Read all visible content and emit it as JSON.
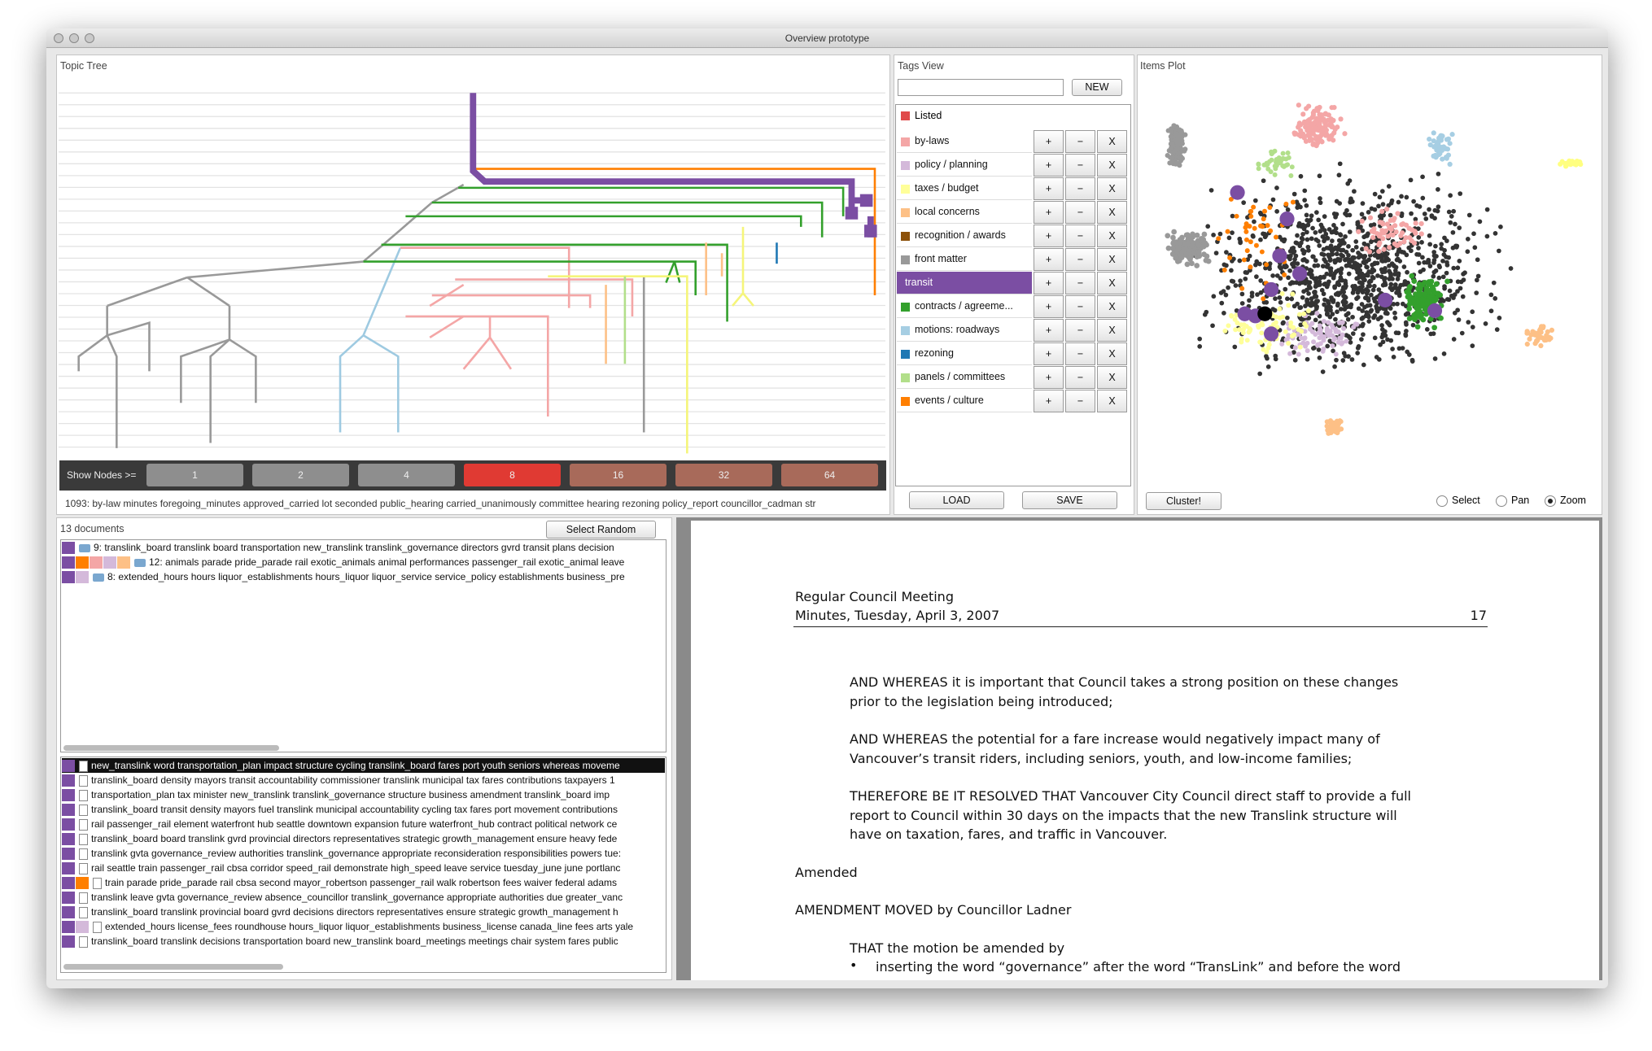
{
  "window": {
    "title": "Overview prototype"
  },
  "topic_tree": {
    "title": "Topic Tree",
    "show_nodes_label": "Show Nodes >=",
    "node_buttons": [
      {
        "label": "1",
        "color": "#8e8e8e"
      },
      {
        "label": "2",
        "color": "#8e8e8e"
      },
      {
        "label": "4",
        "color": "#8e8e8e"
      },
      {
        "label": "8",
        "color": "#e03a33"
      },
      {
        "label": "16",
        "color": "#a86a5a"
      },
      {
        "label": "32",
        "color": "#a86a5a"
      },
      {
        "label": "64",
        "color": "#a86a5a"
      }
    ],
    "status": "1093: by-law minutes foregoing_minutes approved_carried lot seconded public_hearing carried_unanimously committee hearing rezoning policy_report councillor_cadman str"
  },
  "tags_view": {
    "title": "Tags View",
    "new_button": "NEW",
    "listed": {
      "name": "Listed",
      "color": "#e04b4b"
    },
    "tags": [
      {
        "name": "by-laws",
        "color": "#f4a6a6"
      },
      {
        "name": "policy / planning",
        "color": "#d4b9da"
      },
      {
        "name": "taxes / budget",
        "color": "#ffff99"
      },
      {
        "name": "local concerns",
        "color": "#fdc086"
      },
      {
        "name": "recognition / awards",
        "color": "#8c510a"
      },
      {
        "name": "front matter",
        "color": "#999999"
      },
      {
        "name": "transit",
        "color": "#7b4ea3",
        "selected": true
      },
      {
        "name": "contracts / agreeme...",
        "color": "#33a02c"
      },
      {
        "name": "motions: roadways",
        "color": "#a6cee3"
      },
      {
        "name": "rezoning",
        "color": "#1f78b4"
      },
      {
        "name": "panels / committees",
        "color": "#b2df8a"
      },
      {
        "name": "events / culture",
        "color": "#ff7f00"
      }
    ],
    "row_buttons": [
      "+",
      "−",
      "X"
    ],
    "load_button": "LOAD",
    "save_button": "SAVE"
  },
  "items_plot": {
    "title": "Items Plot",
    "cluster_button": "Cluster!",
    "modes": [
      {
        "label": "Select",
        "checked": false
      },
      {
        "label": "Pan",
        "checked": false
      },
      {
        "label": "Zoom",
        "checked": true
      }
    ]
  },
  "documents": {
    "count_label": "13 documents",
    "select_random": "Select Random",
    "items": [
      {
        "colors": [
          "#7b4ea3"
        ],
        "text": "9: translink_board translink board transportation new_translink translink_governance directors gvrd transit plans decision"
      },
      {
        "colors": [
          "#7b4ea3",
          "#ff7f00",
          "#f4a6a6",
          "#d4b9da",
          "#fdc086"
        ],
        "text": "12: animals parade pride_parade rail exotic_animals animal performances passenger_rail exotic_animal leave"
      },
      {
        "colors": [
          "#7b4ea3",
          "#d4b9da"
        ],
        "text": "8: extended_hours hours liquor_establishments hours_liquor liquor_service service_policy establishments business_pre"
      }
    ],
    "snippets": [
      {
        "colors": [
          "#7b4ea3"
        ],
        "selected": true,
        "text": "new_translink word transportation_plan impact structure cycling translink_board fares port youth seniors whereas moveme"
      },
      {
        "colors": [
          "#7b4ea3"
        ],
        "text": "translink_board density mayors transit accountability commissioner translink municipal tax fares contributions taxpayers 1"
      },
      {
        "colors": [
          "#7b4ea3"
        ],
        "text": "transportation_plan tax minister new_translink translink_governance structure business amendment translink_board imp"
      },
      {
        "colors": [
          "#7b4ea3"
        ],
        "text": "translink_board transit density mayors fuel translink municipal accountability cycling tax fares port movement contributions"
      },
      {
        "colors": [
          "#7b4ea3"
        ],
        "text": "rail passenger_rail element waterfront hub seattle downtown expansion future waterfront_hub contract political network ce"
      },
      {
        "colors": [
          "#7b4ea3"
        ],
        "text": "translink_board board translink gvrd provincial directors representatives strategic growth_management ensure heavy fede"
      },
      {
        "colors": [
          "#7b4ea3"
        ],
        "text": "translink gvta governance_review authorities translink_governance appropriate reconsideration responsibilities powers tue:"
      },
      {
        "colors": [
          "#7b4ea3"
        ],
        "text": "rail seattle train passenger_rail cbsa corridor speed_rail demonstrate high_speed leave service tuesday_june june portlanc"
      },
      {
        "colors": [
          "#7b4ea3",
          "#ff7f00"
        ],
        "text": "train parade pride_parade rail cbsa second mayor_robertson passenger_rail walk robertson fees waiver federal adams"
      },
      {
        "colors": [
          "#7b4ea3"
        ],
        "text": "translink leave gvta governance_review absence_councillor translink_governance appropriate authorities due greater_vanc"
      },
      {
        "colors": [
          "#7b4ea3"
        ],
        "text": "translink_board translink provincial board gvrd decisions directors representatives ensure strategic growth_management h"
      },
      {
        "colors": [
          "#7b4ea3",
          "#d4b9da"
        ],
        "text": "extended_hours license_fees roundhouse hours_liquor liquor_establishments business_license canada_line fees arts yale"
      },
      {
        "colors": [
          "#7b4ea3"
        ],
        "text": "translink_board translink decisions transportation board new_translink board_meetings meetings chair system fares public"
      }
    ]
  },
  "document_viewer": {
    "header": [
      "Regular Council Meeting",
      "Minutes, Tuesday, April 3, 2007"
    ],
    "page_number": "17",
    "blocks": [
      {
        "indent": true,
        "lines": [
          "AND WHEREAS it is important that Council takes a strong position on these changes",
          "prior to the legislation being introduced;"
        ]
      },
      {
        "indent": true,
        "lines": [
          "AND WHEREAS the potential for a fare increase would negatively impact many of",
          "Vancouver’s transit riders, including seniors, youth, and low-income families;"
        ]
      },
      {
        "indent": true,
        "lines": [
          "THEREFORE BE IT RESOLVED THAT Vancouver City Council direct staff to provide a full",
          "report to Council within 30 days on the impacts that the new Translink structure will",
          "have on taxation, fares, and traffic in Vancouver."
        ]
      },
      {
        "indent": false,
        "lines": [
          "Amended"
        ]
      },
      {
        "indent": false,
        "lines": [
          "AMENDMENT MOVED by Councillor Ladner"
        ]
      },
      {
        "indent": true,
        "lines": [
          "THAT the motion be amended by"
        ]
      },
      {
        "indent": true,
        "bullet": "•",
        "lines": [
          "inserting the word “governance” after the word “TransLink” and before the word"
        ]
      }
    ]
  }
}
